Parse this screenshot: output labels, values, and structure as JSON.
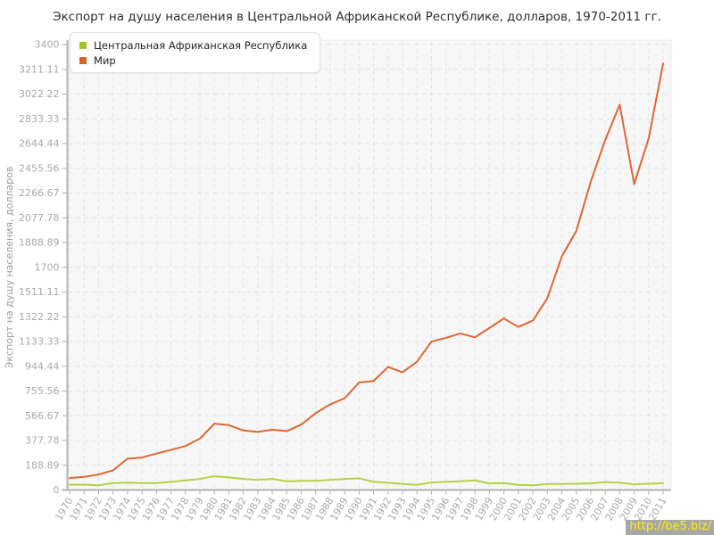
{
  "title": "Экспорт на душу населения в Центральной Африканской Республике, долларов, 1970-2011 гг.",
  "watermark": "http://be5.biz/",
  "colors": {
    "plot_bg": "#f7f7f7",
    "grid": "#e4e4e4",
    "axis": "#b3b3b3",
    "tick": "#b0b0b0",
    "tick_label": "#a9a9a9",
    "axis_title": "#9a9a9a",
    "title_text": "#2e2e2e"
  },
  "chart_data": {
    "type": "line",
    "title": "Экспорт на душу населения в Центральной Африканской Республике, долларов, 1970-2011 гг.",
    "xlabel": "",
    "ylabel": "Экспорт на душу населения, долларов",
    "ylim": [
      0,
      3400
    ],
    "grid": true,
    "legend_position": "top-left",
    "y_tick_labels": [
      "0",
      "188.89",
      "377.78",
      "566.67",
      "755.56",
      "944.44",
      "1133.33",
      "1322.22",
      "1511.11",
      "1700",
      "1888.89",
      "2077.78",
      "2266.67",
      "2455.56",
      "2644.44",
      "2833.33",
      "3022.22",
      "3211.11",
      "3400"
    ],
    "x": [
      "1970",
      "1971",
      "1972",
      "1973",
      "1974",
      "1975",
      "1976",
      "1977",
      "1978",
      "1979",
      "1980",
      "1981",
      "1982",
      "1983",
      "1984",
      "1985",
      "1986",
      "1987",
      "1988",
      "1989",
      "1990",
      "1991",
      "1992",
      "1993",
      "1994",
      "1995",
      "1996",
      "1997",
      "1998",
      "1999",
      "2000",
      "2001",
      "2002",
      "2003",
      "2004",
      "2005",
      "2006",
      "2007",
      "2008",
      "2009",
      "2010",
      "2011"
    ],
    "series": [
      {
        "name": "Центральная Африканская Республика",
        "color": "#b3d243",
        "swatch_color": "#a3c61f",
        "values": [
          41,
          41,
          36,
          53,
          55,
          53,
          53,
          62,
          73,
          84,
          105,
          96,
          84,
          77,
          84,
          66,
          70,
          70,
          77,
          84,
          89,
          62,
          55,
          46,
          39,
          57,
          62,
          66,
          73,
          50,
          53,
          39,
          36,
          46,
          46,
          48,
          50,
          60,
          55,
          43,
          48,
          53
        ]
      },
      {
        "name": "Мир",
        "color": "#df6734",
        "swatch_color": "#d9622b",
        "values": [
          91,
          100,
          118,
          150,
          239,
          248,
          278,
          306,
          335,
          392,
          506,
          495,
          454,
          443,
          460,
          449,
          499,
          586,
          654,
          700,
          821,
          832,
          939,
          898,
          980,
          1133,
          1161,
          1195,
          1165,
          1237,
          1309,
          1245,
          1293,
          1464,
          1783,
          1977,
          2353,
          2672,
          2941,
          2335,
          2683,
          3256
        ]
      }
    ]
  }
}
